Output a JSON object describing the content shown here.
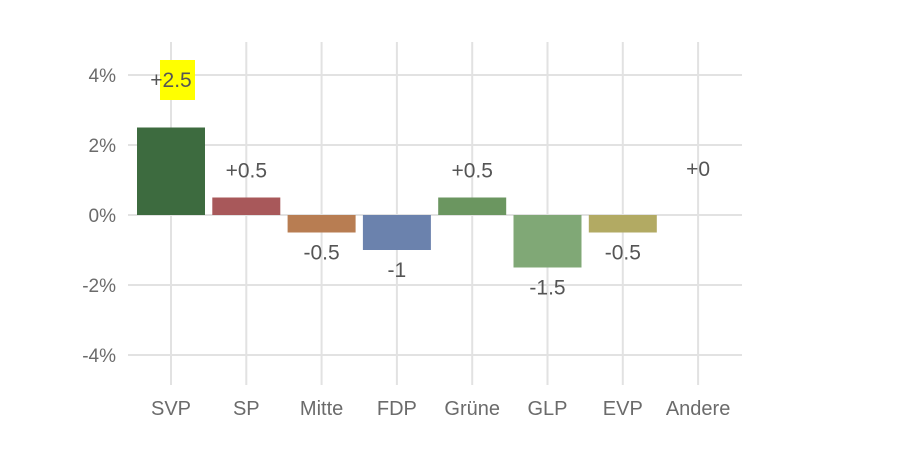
{
  "chart_data": {
    "type": "bar",
    "categories": [
      "SVP",
      "SP",
      "Mitte",
      "FDP",
      "Grüne",
      "GLP",
      "EVP",
      "Andere"
    ],
    "values": [
      2.5,
      0.5,
      -0.5,
      -1,
      0.5,
      -1.5,
      -0.5,
      0
    ],
    "data_labels": [
      "+2.5",
      "+0.5",
      "-0.5",
      "-1",
      "+0.5",
      "-1.5",
      "-0.5",
      "+0"
    ],
    "colors": [
      "#3d6b3f",
      "#a8585a",
      "#b87d52",
      "#6b82ad",
      "#6b9660",
      "#80a876",
      "#b2aa63",
      "#999999"
    ],
    "highlight": {
      "index": 0,
      "color": "#ffff00"
    },
    "ylim": [
      -5,
      5
    ],
    "yticks": [
      {
        "value": 4,
        "label": "4%"
      },
      {
        "value": 2,
        "label": "2%"
      },
      {
        "value": 0,
        "label": "0%"
      },
      {
        "value": -2,
        "label": "-2%"
      },
      {
        "value": -4,
        "label": "-4%"
      }
    ],
    "title": "",
    "xlabel": "",
    "ylabel": "",
    "grid": true,
    "legend": "none"
  }
}
